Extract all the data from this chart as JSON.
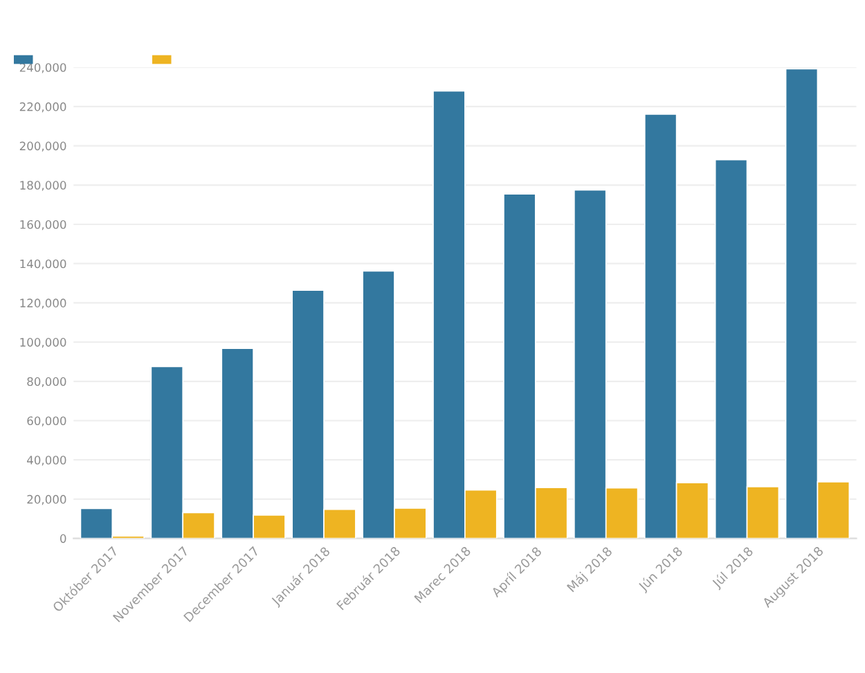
{
  "chart_data": {
    "type": "bar",
    "categories": [
      "Október 2017",
      "November 2017",
      "December 2017",
      "Január 2018",
      "Február 2018",
      "Marec 2018",
      "Apríl 2018",
      "Máj 2018",
      "Jún 2018",
      "Júl 2018",
      "August 2018"
    ],
    "series": [
      {
        "color": "#33789f",
        "values": [
          15200,
          87500,
          96800,
          126400,
          136200,
          227900,
          175500,
          177500,
          216100,
          192900,
          239200
        ]
      },
      {
        "color": "#eeb422",
        "values": [
          1200,
          13100,
          11900,
          14800,
          15400,
          24700,
          25900,
          25700,
          28400,
          26300,
          28800
        ]
      }
    ],
    "ylim": [
      0,
      240000
    ],
    "yticks": [
      {
        "value": 0,
        "label": "0"
      },
      {
        "value": 20000,
        "label": "20,000"
      },
      {
        "value": 40000,
        "label": "40,000"
      },
      {
        "value": 60000,
        "label": "60,000"
      },
      {
        "value": 80000,
        "label": "80,000"
      },
      {
        "value": 100000,
        "label": "100,000"
      },
      {
        "value": 120000,
        "label": "120,000"
      },
      {
        "value": 140000,
        "label": "140,000"
      },
      {
        "value": 160000,
        "label": "160,000"
      },
      {
        "value": 180000,
        "label": "180,000"
      },
      {
        "value": 200000,
        "label": "200,000"
      },
      {
        "value": 220000,
        "label": "220,000"
      },
      {
        "value": 240000,
        "label": "240,000"
      }
    ],
    "grid": "y"
  }
}
